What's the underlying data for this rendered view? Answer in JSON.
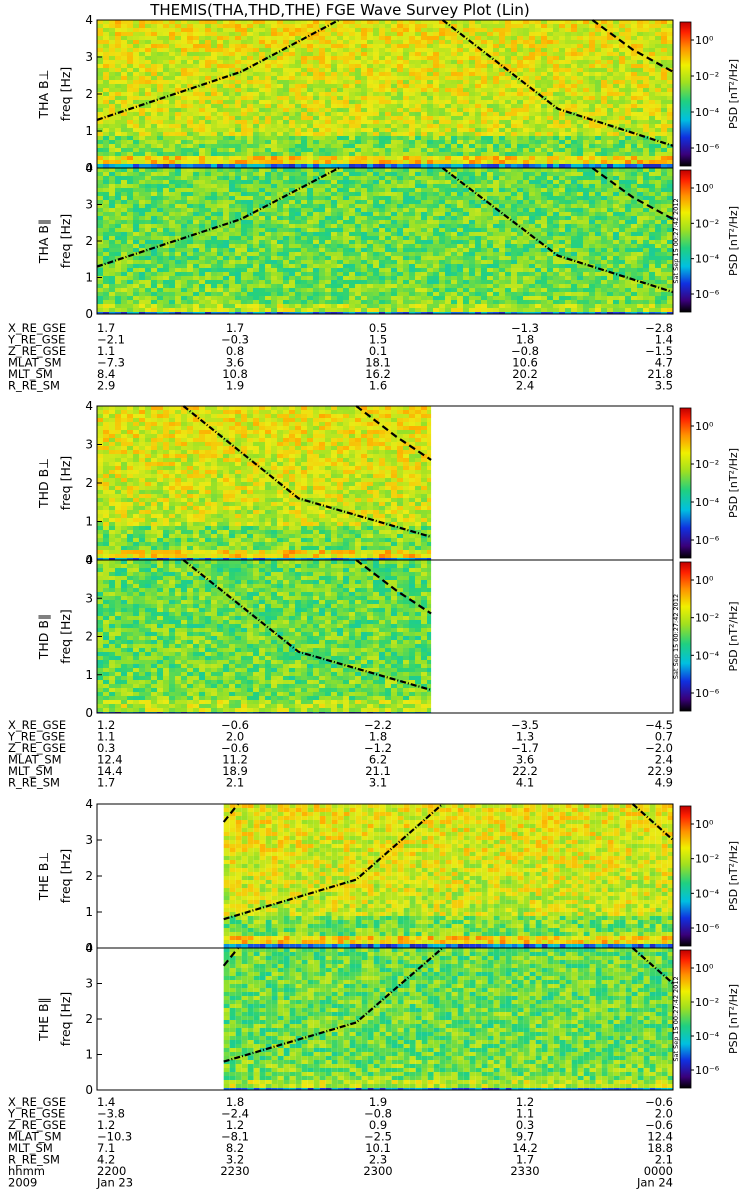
{
  "title": "THEMIS(THA,THD,THE) FGE Wave Survey Plot (Lin)",
  "colorbar": {
    "label": "PSD [nT²/Hz]",
    "ticks": [
      "10⁰",
      "10⁻²",
      "10⁻⁴",
      "10⁻⁶"
    ],
    "stamp": "Sat Sep 15 00:27:42 2012"
  },
  "freq_axis": {
    "label": "freq [Hz]",
    "ticks": [
      "0",
      "1",
      "2",
      "3",
      "4"
    ]
  },
  "ephem_labels": [
    "X_RE_GSE",
    "Y_RE_GSE",
    "Z_RE_GSE",
    "MLAT_SM",
    "MLT_SM",
    "R_RE_SM"
  ],
  "time_labels": {
    "hhmm_label": "hhmm",
    "year": "2009",
    "ticks": [
      "2200",
      "2230",
      "2300",
      "2330",
      "0000"
    ],
    "date_start": "Jan 23",
    "date_end": "Jan 24"
  },
  "chart_data": [
    {
      "type": "heatmap",
      "probe": "THA",
      "component": "B⊥",
      "ylabel": "THA B⊥",
      "ylim": [
        0,
        4
      ],
      "data_start": 0.0,
      "data_end": 1.0,
      "curves": [
        {
          "style": "dashdot",
          "points": [
            [
              0.0,
              1.3
            ],
            [
              0.25,
              2.6
            ],
            [
              0.42,
              4.1
            ]
          ]
        },
        {
          "style": "dashdot",
          "points": [
            [
              0.6,
              4.1
            ],
            [
              0.8,
              1.6
            ],
            [
              1.0,
              0.6
            ]
          ]
        },
        {
          "style": "dashed",
          "points": [
            [
              0.86,
              4.1
            ],
            [
              0.93,
              3.2
            ],
            [
              1.0,
              2.6
            ]
          ]
        }
      ]
    },
    {
      "type": "heatmap",
      "probe": "THA",
      "component": "B∥",
      "ylabel": "THA B∥",
      "ylim": [
        0,
        4
      ],
      "data_start": 0.0,
      "data_end": 1.0,
      "curves": [
        {
          "style": "dashdot",
          "points": [
            [
              0.0,
              1.3
            ],
            [
              0.25,
              2.6
            ],
            [
              0.42,
              4.1
            ]
          ]
        },
        {
          "style": "dashdot",
          "points": [
            [
              0.6,
              4.1
            ],
            [
              0.8,
              1.6
            ],
            [
              1.0,
              0.6
            ]
          ]
        },
        {
          "style": "dashed",
          "points": [
            [
              0.86,
              4.1
            ],
            [
              0.93,
              3.2
            ],
            [
              1.0,
              2.6
            ]
          ]
        }
      ]
    },
    {
      "type": "heatmap",
      "probe": "THD",
      "component": "B⊥",
      "ylabel": "THD B⊥",
      "ylim": [
        0,
        4
      ],
      "data_start": 0.0,
      "data_end": 0.58,
      "curves": [
        {
          "style": "dashdot",
          "points": [
            [
              0.15,
              4.1
            ],
            [
              0.35,
              1.6
            ],
            [
              0.58,
              0.6
            ]
          ]
        },
        {
          "style": "dashed",
          "points": [
            [
              0.45,
              4.1
            ],
            [
              0.52,
              3.2
            ],
            [
              0.58,
              2.6
            ]
          ]
        }
      ]
    },
    {
      "type": "heatmap",
      "probe": "THD",
      "component": "B∥",
      "ylabel": "THD B∥",
      "ylim": [
        0,
        4
      ],
      "data_start": 0.0,
      "data_end": 0.58,
      "curves": [
        {
          "style": "dashdot",
          "points": [
            [
              0.15,
              4.1
            ],
            [
              0.35,
              1.6
            ],
            [
              0.58,
              0.6
            ]
          ]
        },
        {
          "style": "dashed",
          "points": [
            [
              0.45,
              4.1
            ],
            [
              0.52,
              3.2
            ],
            [
              0.58,
              2.6
            ]
          ]
        }
      ]
    },
    {
      "type": "heatmap",
      "probe": "THE",
      "component": "B⊥",
      "ylabel": "THE B⊥",
      "ylim": [
        0,
        4
      ],
      "data_start": 0.22,
      "data_end": 1.0,
      "curves": [
        {
          "style": "dashed",
          "points": [
            [
              0.22,
              3.5
            ],
            [
              0.245,
              4.1
            ]
          ]
        },
        {
          "style": "dashdot",
          "points": [
            [
              0.22,
              0.8
            ],
            [
              0.45,
              1.9
            ],
            [
              0.6,
              4.1
            ]
          ]
        },
        {
          "style": "dashdot",
          "points": [
            [
              0.93,
              4.1
            ],
            [
              1.0,
              3.0
            ]
          ]
        }
      ]
    },
    {
      "type": "heatmap",
      "probe": "THE",
      "component": "B∥",
      "ylabel": "THE B∥",
      "ylim": [
        0,
        4
      ],
      "data_start": 0.22,
      "data_end": 1.0,
      "curves": [
        {
          "style": "dashed",
          "points": [
            [
              0.22,
              3.5
            ],
            [
              0.245,
              4.1
            ]
          ]
        },
        {
          "style": "dashdot",
          "points": [
            [
              0.22,
              0.8
            ],
            [
              0.45,
              1.9
            ],
            [
              0.6,
              4.1
            ]
          ]
        },
        {
          "style": "dashdot",
          "points": [
            [
              0.93,
              4.1
            ],
            [
              1.0,
              3.0
            ]
          ]
        }
      ]
    }
  ],
  "ephemeris": [
    {
      "probe": "THA",
      "rows": [
        [
          "1.7",
          "1.7",
          "0.5",
          "−1.3",
          "−2.8"
        ],
        [
          "−2.1",
          "−0.3",
          "1.5",
          "1.8",
          "1.4"
        ],
        [
          "1.1",
          "0.8",
          "0.1",
          "−0.8",
          "−1.5"
        ],
        [
          "−7.3",
          "3.6",
          "18.1",
          "10.6",
          "4.7"
        ],
        [
          "8.4",
          "10.8",
          "16.2",
          "20.2",
          "21.8"
        ],
        [
          "2.9",
          "1.9",
          "1.6",
          "2.4",
          "3.5"
        ]
      ]
    },
    {
      "probe": "THD",
      "rows": [
        [
          "1.2",
          "−0.6",
          "−2.2",
          "−3.5",
          "−4.5"
        ],
        [
          "1.1",
          "2.0",
          "1.8",
          "1.3",
          "0.7"
        ],
        [
          "0.3",
          "−0.6",
          "−1.2",
          "−1.7",
          "−2.0"
        ],
        [
          "12.4",
          "11.2",
          "6.2",
          "3.6",
          "2.4"
        ],
        [
          "14.4",
          "18.9",
          "21.1",
          "22.2",
          "22.9"
        ],
        [
          "1.7",
          "2.1",
          "3.1",
          "4.1",
          "4.9"
        ]
      ]
    },
    {
      "probe": "THE",
      "rows": [
        [
          "1.4",
          "1.8",
          "1.9",
          "1.2",
          "−0.6"
        ],
        [
          "−3.8",
          "−2.4",
          "−0.8",
          "1.1",
          "2.0"
        ],
        [
          "1.2",
          "1.2",
          "0.9",
          "0.3",
          "−0.6"
        ],
        [
          "−10.3",
          "−8.1",
          "−2.5",
          "9.7",
          "12.4"
        ],
        [
          "7.1",
          "8.2",
          "10.1",
          "14.2",
          "18.8"
        ],
        [
          "4.2",
          "3.2",
          "2.3",
          "1.7",
          "2.1"
        ]
      ]
    }
  ]
}
